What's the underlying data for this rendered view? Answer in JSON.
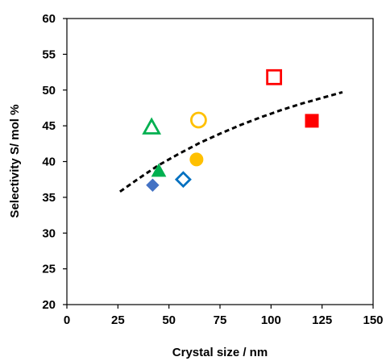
{
  "chart_data": {
    "type": "scatter",
    "title": "",
    "xlabel": "Crystal size / nm",
    "ylabel": "Selectivity S/ mol %",
    "xlim": [
      0,
      150
    ],
    "ylim": [
      20,
      60
    ],
    "x_ticks": [
      "0",
      "25",
      "50",
      "75",
      "100",
      "125",
      "150"
    ],
    "y_ticks": [
      "20",
      "25",
      "30",
      "35",
      "40",
      "45",
      "50",
      "55",
      "60"
    ],
    "grid": false,
    "legend": "none",
    "series": [
      {
        "marker": "diamond",
        "fill": "solid",
        "color": "#4472c4",
        "points": [
          {
            "x": 42,
            "y": 36.7
          }
        ]
      },
      {
        "marker": "diamond",
        "fill": "open",
        "color": "#0070c0",
        "points": [
          {
            "x": 57,
            "y": 37.5
          }
        ]
      },
      {
        "marker": "triangle",
        "fill": "solid",
        "color": "#00b050",
        "points": [
          {
            "x": 45,
            "y": 38.7
          }
        ]
      },
      {
        "marker": "triangle",
        "fill": "open",
        "color": "#00b050",
        "points": [
          {
            "x": 41.5,
            "y": 44.8
          }
        ]
      },
      {
        "marker": "circle",
        "fill": "solid",
        "color": "#ffc000",
        "points": [
          {
            "x": 63.5,
            "y": 40.3
          }
        ]
      },
      {
        "marker": "circle",
        "fill": "open",
        "color": "#ffc000",
        "points": [
          {
            "x": 64.5,
            "y": 45.8
          }
        ]
      },
      {
        "marker": "square",
        "fill": "solid",
        "color": "#ff0000",
        "points": [
          {
            "x": 120,
            "y": 45.7
          }
        ]
      },
      {
        "marker": "square",
        "fill": "open",
        "color": "#ff0000",
        "points": [
          {
            "x": 101.5,
            "y": 51.8
          }
        ]
      }
    ],
    "trend_line": {
      "style": "dashed",
      "color": "#000000",
      "points": [
        {
          "x": 26,
          "y": 35.8
        },
        {
          "x": 35,
          "y": 37.6
        },
        {
          "x": 45,
          "y": 39.5
        },
        {
          "x": 55,
          "y": 41.1
        },
        {
          "x": 65,
          "y": 42.6
        },
        {
          "x": 75,
          "y": 43.9
        },
        {
          "x": 85,
          "y": 45.1
        },
        {
          "x": 95,
          "y": 46.2
        },
        {
          "x": 105,
          "y": 47.2
        },
        {
          "x": 115,
          "y": 48.1
        },
        {
          "x": 125,
          "y": 48.9
        },
        {
          "x": 135,
          "y": 49.7
        }
      ]
    }
  }
}
